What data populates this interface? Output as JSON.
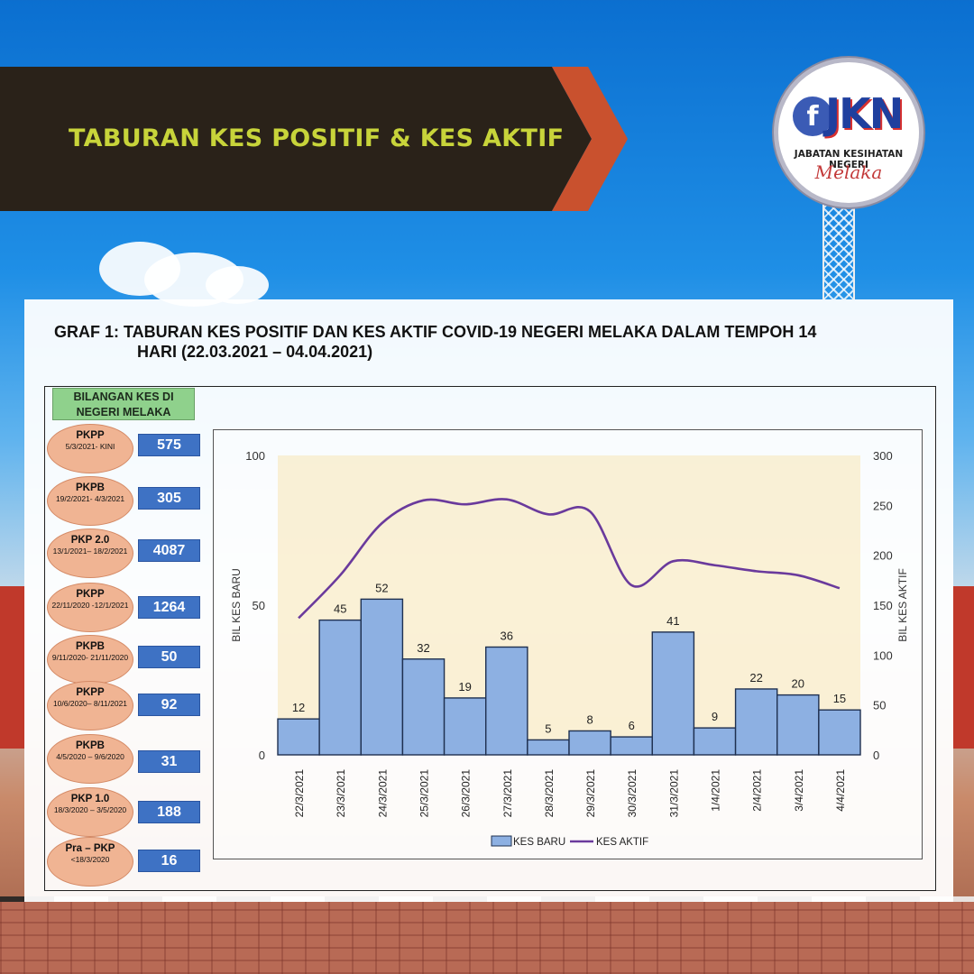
{
  "banner": {
    "title": "TABURAN KES POSITIF & KES AKTIF"
  },
  "logo": {
    "letter": "f",
    "brand": "JKN",
    "subtitle": "JABATAN KESIHATAN NEGERI",
    "state": "Melaka"
  },
  "graph_title": {
    "line1": "GRAF 1: TABURAN KES POSITIF DAN KES AKTIF COVID-19 NEGERI MELAKA DALAM TEMPOH 14",
    "line2": "HARI (22.03.2021 – 04.04.2021)"
  },
  "side_panel": {
    "header_line1": "BILANGAN KES DI",
    "header_line2": "NEGERI MELAKA",
    "phases": [
      {
        "name": "PKPP",
        "dates": "5/3/2021- KINI",
        "count": "575"
      },
      {
        "name": "PKPB",
        "dates": "19/2/2021- 4/3/2021",
        "count": "305"
      },
      {
        "name": "PKP 2.0",
        "dates": "13/1/2021– 18/2/2021",
        "count": "4087"
      },
      {
        "name": "PKPP",
        "dates": "22/11/2020 -12/1/2021",
        "count": "1264"
      },
      {
        "name": "PKPB",
        "dates": "9/11/2020- 21/11/2020",
        "count": "50"
      },
      {
        "name": "PKPP",
        "dates": "10/6/2020– 8/11/2021",
        "count": "92"
      },
      {
        "name": "PKPB",
        "dates": "4/5/2020 – 9/6/2020",
        "count": "31"
      },
      {
        "name": "PKP 1.0",
        "dates": "18/3/2020 – 3/5/2020",
        "count": "188"
      },
      {
        "name": "Pra – PKP",
        "dates": "<18/3/2020",
        "count": "16"
      }
    ]
  },
  "colors": {
    "bar_fill": "#8db0e2",
    "bar_stroke": "#1f3050",
    "line": "#6a3a9c",
    "banner_dark": "#2a2219",
    "banner_arrow": "#c9512e",
    "title_green": "#c8d43a",
    "count_box": "#3e72c4",
    "phase_fill": "#f0b493",
    "header_green": "#8fd18c"
  },
  "chart_data": {
    "type": "bar",
    "categories": [
      "22/3/2021",
      "23/3/2021",
      "24/3/2021",
      "25/3/2021",
      "26/3/2021",
      "27/3/2021",
      "28/3/2021",
      "29/3/2021",
      "30/3/2021",
      "31/3/2021",
      "1/4/2021",
      "2/4/2021",
      "3/4/2021",
      "4/4/2021"
    ],
    "series": [
      {
        "name": "KES BARU",
        "type": "bar",
        "axis": "left",
        "values": [
          12,
          45,
          52,
          32,
          19,
          36,
          5,
          8,
          6,
          41,
          9,
          22,
          20,
          15
        ]
      },
      {
        "name": "KES AKTIF",
        "type": "line",
        "axis": "right",
        "values": [
          137,
          180,
          232,
          255,
          251,
          256,
          241,
          244,
          170,
          194,
          190,
          184,
          180,
          167
        ]
      }
    ],
    "ylabel_left": "BIL KES BARU",
    "ylabel_right": "BIL KES AKTIF",
    "ylim_left": [
      0,
      100
    ],
    "ylim_right": [
      0,
      300
    ],
    "yticks_left": [
      "0",
      "50",
      "100"
    ],
    "yticks_right": [
      "0",
      "50",
      "100",
      "150",
      "200",
      "250",
      "300"
    ],
    "legend": {
      "bar_label": "KES BARU",
      "line_label": "KES AKTIF",
      "placement": "bottom"
    },
    "grid": false
  }
}
